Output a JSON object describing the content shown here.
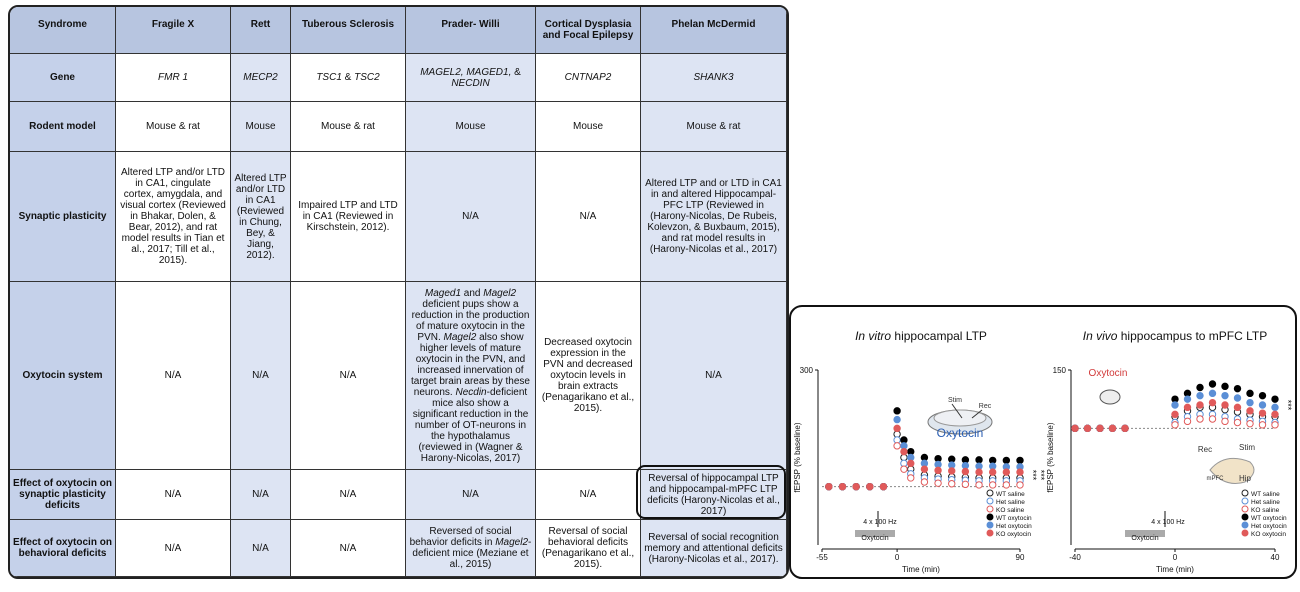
{
  "table": {
    "header": [
      "Syndrome",
      "Fragile X",
      "Rett",
      "Tuberous Sclerosis",
      "Prader- Willi",
      "Cortical Dysplasia and Focal Epilepsy",
      "Phelan McDermid"
    ],
    "rows": [
      [
        "Gene",
        [
          {
            "text": "FMR 1",
            "italic": true
          }
        ],
        [
          {
            "text": "MECP2",
            "italic": true
          }
        ],
        [
          {
            "text": "TSC1",
            "italic": true
          },
          {
            "text": " & "
          },
          {
            "text": "TSC2",
            "italic": true
          }
        ],
        [
          {
            "text": "MAGEL2, MAGED1, ",
            "italic": true
          },
          {
            "text": "& "
          },
          {
            "text": "NECDIN",
            "italic": true
          }
        ],
        [
          {
            "text": "CNTNAP2",
            "italic": true
          }
        ],
        [
          {
            "text": "SHANK3",
            "italic": true
          }
        ]
      ],
      [
        "Rodent model",
        "Mouse & rat",
        "Mouse",
        "Mouse & rat",
        "Mouse",
        "Mouse",
        "Mouse & rat"
      ],
      [
        "Synaptic plasticity",
        "Altered LTP and/or LTD in CA1, cingulate cortex, amygdala, and visual cortex (Reviewed in Bhakar, Dolen, & Bear, 2012), and rat model results in Tian et al., 2017; Till et al., 2015).",
        "Altered LTP and/or LTD in CA1 (Reviewed in Chung, Bey, & Jiang, 2012).",
        "Impaired LTP and LTD in CA1 (Reviewed in Kirschstein, 2012).",
        "N/A",
        "N/A",
        "Altered LTP and or LTD in CA1 in and altered Hippocampal-PFC LTP (Reviewed in (Harony-Nicolas, De Rubeis, Kolevzon, & Buxbaum, 2015), and rat model results in (Harony-Nicolas et al., 2017)"
      ],
      [
        "Oxytocin system",
        "N/A",
        "N/A",
        "N/A",
        [
          {
            "text": "Maged1",
            "italic": true
          },
          {
            "text": " and "
          },
          {
            "text": "Magel2",
            "italic": true
          },
          {
            "text": " deficient pups show a reduction in the production of mature oxytocin in the PVN. "
          },
          {
            "text": "Magel2",
            "italic": true
          },
          {
            "text": " also show higher levels of mature oxytocin in the PVN, and increased innervation of target brain areas by these neurons. "
          },
          {
            "text": "Necdin",
            "italic": true
          },
          {
            "text": "-deficient mice also show a significant reduction in the number of OT-neurons in the hypothalamus (reviewed in (Wagner & Harony-Nicolas, 2017)"
          }
        ],
        "Decreased oxytocin expression in the PVN and decreased oxytocin levels in brain extracts (Penagarikano et al., 2015).",
        "N/A"
      ],
      [
        "Effect of oxytocin on synaptic plasticity deficits",
        "N/A",
        "N/A",
        "N/A",
        "N/A",
        "N/A",
        "Reversal of hippocampal LTP and hippocampal-mPFC LTP deficits (Harony-Nicolas et al., 2017)"
      ],
      [
        "Effect of oxytocin on behavioral deficits",
        "N/A",
        "N/A",
        "N/A",
        [
          {
            "text": "Reversed of social behavior deficits in "
          },
          {
            "text": "Magel2",
            "italic": true
          },
          {
            "text": "-deficient mice (Meziane et al., 2015)"
          }
        ],
        "Reversal of social behavioral deficits (Penagarikano et al., 2015).",
        "Reversal of social recognition memory and attentional deficits (Harony-Nicolas et al., 2017)."
      ]
    ]
  },
  "chart_data": [
    {
      "type": "scatter",
      "title_italic": "In vitro",
      "title": " hippocampal LTP",
      "x_label": "Time (min)",
      "y_label": "fEPSP (% baseline)",
      "xlim": [
        -55,
        90
      ],
      "xticks": [
        -55,
        0,
        90
      ],
      "ylim": [
        0,
        300
      ],
      "yticks": [
        300
      ],
      "hline": 100,
      "x": [
        -50,
        -40,
        -30,
        -20,
        -10,
        0,
        5,
        10,
        20,
        30,
        40,
        50,
        60,
        70,
        80,
        90
      ],
      "series": [
        {
          "name": "WT saline",
          "color": "#222222",
          "filled": false,
          "values": [
            100,
            100,
            100,
            100,
            100,
            190,
            150,
            130,
            120,
            118,
            117,
            116,
            115,
            115,
            115,
            115
          ]
        },
        {
          "name": "Het saline",
          "color": "#5b8fd6",
          "filled": false,
          "values": [
            100,
            100,
            100,
            100,
            100,
            180,
            140,
            122,
            115,
            113,
            112,
            111,
            110,
            110,
            110,
            110
          ]
        },
        {
          "name": "KO saline",
          "color": "#e05a5a",
          "filled": false,
          "values": [
            100,
            100,
            100,
            100,
            100,
            170,
            130,
            115,
            108,
            106,
            105,
            104,
            103,
            103,
            103,
            103
          ]
        },
        {
          "name": "WT oxytocin",
          "color": "#000000",
          "filled": true,
          "values": [
            100,
            100,
            100,
            100,
            100,
            230,
            180,
            160,
            150,
            148,
            147,
            146,
            146,
            145,
            145,
            145
          ]
        },
        {
          "name": "Het oxytocin",
          "color": "#5b8fd6",
          "filled": true,
          "values": [
            100,
            100,
            100,
            100,
            100,
            215,
            170,
            150,
            140,
            138,
            137,
            136,
            135,
            135,
            134,
            134
          ]
        },
        {
          "name": "KO oxytocin",
          "color": "#e05a5a",
          "filled": true,
          "values": [
            100,
            100,
            100,
            100,
            100,
            200,
            160,
            140,
            130,
            128,
            127,
            126,
            125,
            125,
            125,
            125
          ]
        }
      ],
      "annotations": [
        "Stim",
        "Rec",
        "Oxytocin",
        "4 x 100 Hz",
        "Oxytocin",
        "***",
        "***"
      ]
    },
    {
      "type": "scatter",
      "title_italic": "In vivo",
      "title": " hippocampus to mPFC LTP",
      "x_label": "Time (min)",
      "y_label": "fEPSP (% baseline)",
      "xlim": [
        -40,
        40
      ],
      "xticks": [
        -40,
        0,
        40
      ],
      "ylim": [
        0,
        150
      ],
      "yticks": [
        150
      ],
      "hline": 100,
      "x": [
        -40,
        -35,
        -30,
        -25,
        -20,
        0,
        5,
        10,
        15,
        20,
        25,
        30,
        35,
        40
      ],
      "series": [
        {
          "name": "WT saline",
          "color": "#222222",
          "filled": false,
          "values": [
            100,
            100,
            100,
            100,
            100,
            110,
            115,
            118,
            118,
            116,
            114,
            112,
            110,
            110
          ]
        },
        {
          "name": "Het saline",
          "color": "#5b8fd6",
          "filled": false,
          "values": [
            100,
            100,
            100,
            100,
            100,
            105,
            110,
            112,
            112,
            110,
            108,
            107,
            106,
            105
          ]
        },
        {
          "name": "KO saline",
          "color": "#e05a5a",
          "filled": false,
          "values": [
            100,
            100,
            100,
            100,
            100,
            103,
            106,
            108,
            108,
            106,
            105,
            104,
            103,
            103
          ]
        },
        {
          "name": "WT oxytocin",
          "color": "#000000",
          "filled": true,
          "values": [
            100,
            100,
            100,
            100,
            100,
            125,
            130,
            135,
            138,
            136,
            134,
            130,
            128,
            125
          ]
        },
        {
          "name": "Het oxytocin",
          "color": "#5b8fd6",
          "filled": true,
          "values": [
            100,
            100,
            100,
            100,
            100,
            120,
            125,
            128,
            130,
            128,
            126,
            122,
            120,
            118
          ]
        },
        {
          "name": "KO oxytocin",
          "color": "#e05a5a",
          "filled": true,
          "values": [
            100,
            100,
            100,
            100,
            100,
            112,
            118,
            120,
            122,
            120,
            118,
            115,
            113,
            112
          ]
        }
      ],
      "annotations": [
        "Oxytocin",
        "Rec",
        "Stim",
        "mPFC",
        "Hip",
        "4 x 100 Hz",
        "Oxytocin",
        "***"
      ]
    }
  ]
}
